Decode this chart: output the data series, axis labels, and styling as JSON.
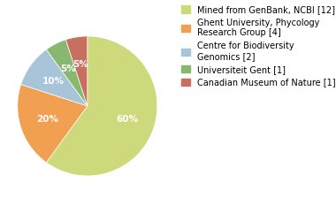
{
  "slices": [
    {
      "label": "Mined from GenBank, NCBI [12]",
      "value": 60,
      "color": "#cdd97a",
      "pct": "60%"
    },
    {
      "label": "Ghent University, Phycology\nResearch Group [4]",
      "value": 20,
      "color": "#f0a050",
      "pct": "20%"
    },
    {
      "label": "Centre for Biodiversity\nGenomics [2]",
      "value": 10,
      "color": "#a8c4d8",
      "pct": "10%"
    },
    {
      "label": "Universiteit Gent [1]",
      "value": 5,
      "color": "#88b870",
      "pct": "5%"
    },
    {
      "label": "Canadian Museum of Nature [1]",
      "value": 5,
      "color": "#c87060",
      "pct": "5%"
    }
  ],
  "fontsize_pct": 7.5,
  "fontsize_legend": 7.0,
  "legend_labels": [
    "Mined from GenBank, NCBI [12]",
    "Ghent University, Phycology\nResearch Group [4]",
    "Centre for Biodiversity\nGenomics [2]",
    "Universiteit Gent [1]",
    "Canadian Museum of Nature [1]"
  ],
  "figsize": [
    3.8,
    2.4
  ],
  "dpi": 100
}
